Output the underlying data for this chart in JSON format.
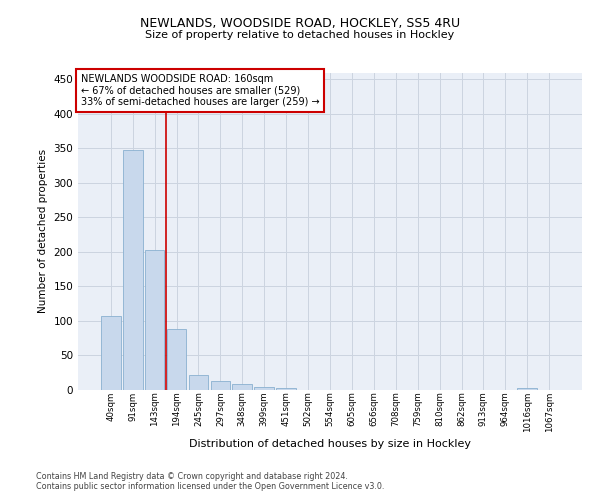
{
  "title": "NEWLANDS, WOODSIDE ROAD, HOCKLEY, SS5 4RU",
  "subtitle": "Size of property relative to detached houses in Hockley",
  "xlabel": "Distribution of detached houses by size in Hockley",
  "ylabel": "Number of detached properties",
  "footer_line1": "Contains HM Land Registry data © Crown copyright and database right 2024.",
  "footer_line2": "Contains public sector information licensed under the Open Government Licence v3.0.",
  "categories": [
    "40sqm",
    "91sqm",
    "143sqm",
    "194sqm",
    "245sqm",
    "297sqm",
    "348sqm",
    "399sqm",
    "451sqm",
    "502sqm",
    "554sqm",
    "605sqm",
    "656sqm",
    "708sqm",
    "759sqm",
    "810sqm",
    "862sqm",
    "913sqm",
    "964sqm",
    "1016sqm",
    "1067sqm"
  ],
  "values": [
    107,
    348,
    203,
    88,
    22,
    13,
    8,
    5,
    3,
    0,
    0,
    0,
    0,
    0,
    0,
    0,
    0,
    0,
    0,
    3,
    0
  ],
  "bar_color": "#c8d8ec",
  "bar_edge_color": "#8ab0d0",
  "grid_color": "#ccd4e0",
  "background_color": "#eaeff7",
  "red_line_x": 2.5,
  "annotation_text_line1": "NEWLANDS WOODSIDE ROAD: 160sqm",
  "annotation_text_line2": "← 67% of detached houses are smaller (529)",
  "annotation_text_line3": "33% of semi-detached houses are larger (259) →",
  "annotation_box_facecolor": "#ffffff",
  "annotation_border_color": "#cc0000",
  "red_line_color": "#cc0000",
  "ylim": [
    0,
    460
  ],
  "yticks": [
    0,
    50,
    100,
    150,
    200,
    250,
    300,
    350,
    400,
    450
  ]
}
